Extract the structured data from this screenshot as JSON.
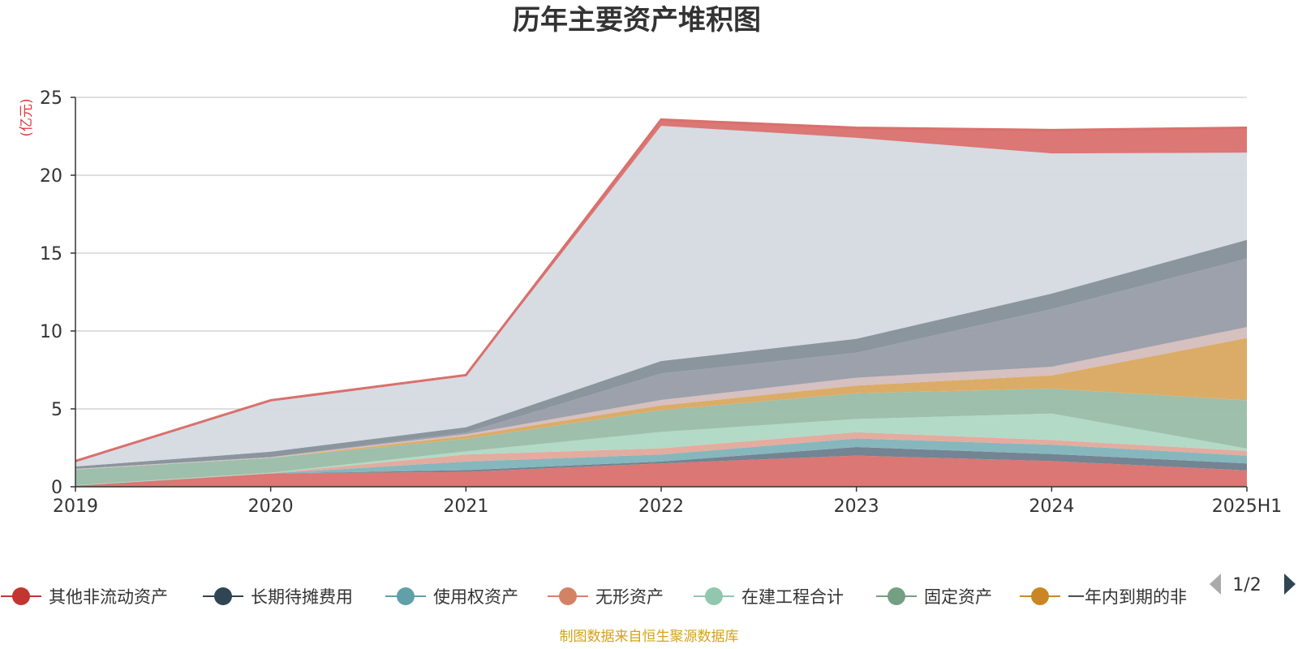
{
  "chart_data": {
    "type": "area",
    "title": "历年主要资产堆积图",
    "unit_label": "(亿元)",
    "x": [
      "2019",
      "2020",
      "2021",
      "2022",
      "2023",
      "2024",
      "2025H1"
    ],
    "ylim": [
      0,
      25
    ],
    "yticks": [
      "0",
      "5",
      "10",
      "15",
      "20",
      "25"
    ],
    "grid": true,
    "stacked": true,
    "legend_position": "bottom",
    "legend_page": "1/2",
    "source_note": "制图数据来自恒生聚源数据库",
    "series": [
      {
        "name": "其他非流动资产",
        "color": "#d9706d",
        "values": [
          0.05,
          0.85,
          0.95,
          1.5,
          2.0,
          1.65,
          1.05
        ]
      },
      {
        "name": "长期待摊费用",
        "color": "#6b7d8c",
        "values": [
          0.02,
          0.0,
          0.12,
          0.12,
          0.55,
          0.45,
          0.45
        ]
      },
      {
        "name": "使用权资产",
        "color": "#7fb3b9",
        "values": [
          0.01,
          0.01,
          0.55,
          0.45,
          0.55,
          0.6,
          0.5
        ]
      },
      {
        "name": "无形资产",
        "color": "#e3a79a",
        "values": [
          0.01,
          0.02,
          0.45,
          0.4,
          0.4,
          0.3,
          0.3
        ]
      },
      {
        "name": "在建工程合计",
        "color": "#aed8c4",
        "values": [
          0.01,
          0.02,
          0.2,
          1.05,
          0.85,
          1.7,
          0.15
        ]
      },
      {
        "name": "固定资产",
        "color": "#98bca7",
        "values": [
          1.0,
          0.95,
          0.8,
          1.4,
          1.65,
          1.6,
          3.1
        ]
      },
      {
        "name": "一年内到期的非流动资产",
        "color": "#d9a85f",
        "values": [
          0.0,
          0.0,
          0.2,
          0.3,
          0.5,
          0.85,
          4.0
        ]
      },
      {
        "name": "",
        "color": "#d4bdbd",
        "values": [
          0.05,
          0.05,
          0.1,
          0.35,
          0.5,
          0.55,
          0.7
        ]
      },
      {
        "name": "",
        "color": "#979ca6",
        "values": [
          0.0,
          0.0,
          0.1,
          1.7,
          1.6,
          3.7,
          4.4
        ]
      },
      {
        "name": "",
        "color": "#858f99",
        "values": [
          0.15,
          0.35,
          0.35,
          0.8,
          0.9,
          1.0,
          1.2
        ]
      },
      {
        "name": "",
        "color": "#d5d9e0",
        "values": [
          0.3,
          3.25,
          3.3,
          15.1,
          12.9,
          9.0,
          5.6
        ]
      },
      {
        "name": "",
        "color": "#d9706d",
        "values": [
          0.05,
          0.05,
          0.05,
          0.4,
          0.65,
          1.5,
          1.6
        ]
      }
    ]
  },
  "icons": {
    "prev_page": "triangle-left-icon",
    "next_page": "triangle-right-icon"
  }
}
